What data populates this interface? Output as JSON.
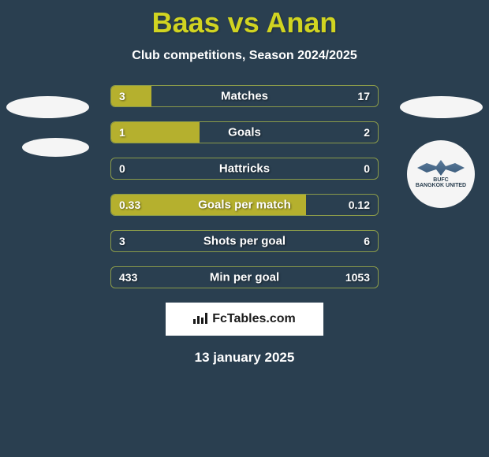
{
  "title": "Baas vs Anan",
  "subtitle": "Club competitions, Season 2024/2025",
  "date": "13 january 2025",
  "watermark_text": "FcTables.com",
  "colors": {
    "background": "#2a3f50",
    "title": "#d1d421",
    "subtitle": "#ffffff",
    "bar_fill": "#b5b02e",
    "bar_border": "#8a9a4a",
    "text": "#ffffff",
    "badge_bg": "#f5f5f5"
  },
  "stats": [
    {
      "label": "Matches",
      "left_value": "3",
      "right_value": "17",
      "left_pct": 15,
      "right_pct": 0
    },
    {
      "label": "Goals",
      "left_value": "1",
      "right_value": "2",
      "left_pct": 33,
      "right_pct": 0
    },
    {
      "label": "Hattricks",
      "left_value": "0",
      "right_value": "0",
      "left_pct": 0,
      "right_pct": 0
    },
    {
      "label": "Goals per match",
      "left_value": "0.33",
      "right_value": "0.12",
      "left_pct": 73,
      "right_pct": 0
    },
    {
      "label": "Shots per goal",
      "left_value": "3",
      "right_value": "6",
      "left_pct": 0,
      "right_pct": 0
    },
    {
      "label": "Min per goal",
      "left_value": "433",
      "right_value": "1053",
      "left_pct": 0,
      "right_pct": 0
    }
  ],
  "right_team": {
    "name": "BANGKOK UNITED",
    "code": "BUFC"
  }
}
